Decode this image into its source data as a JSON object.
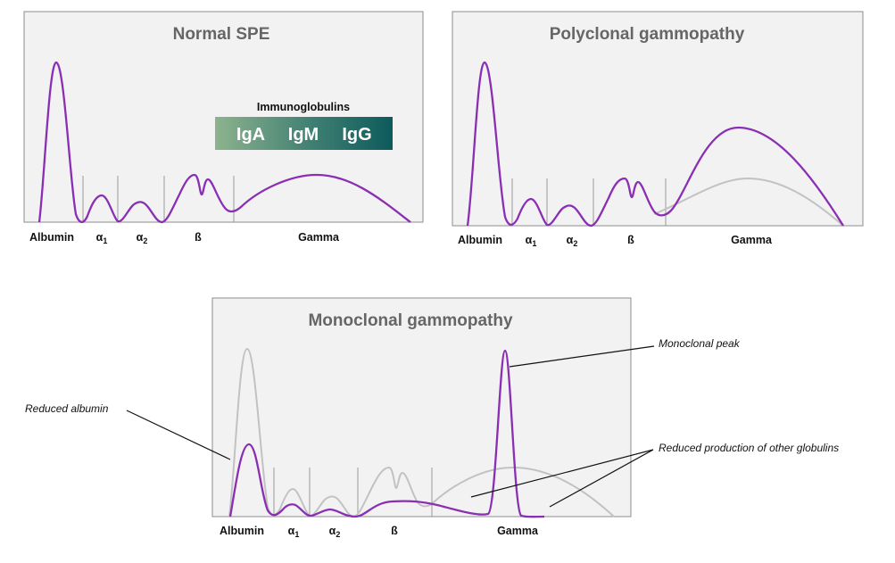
{
  "panels": {
    "normal": {
      "title": "Normal SPE",
      "fractions": {
        "albumin": "Albumin",
        "alpha1": "α",
        "alpha1_sub": "1",
        "alpha2": "α",
        "alpha2_sub": "2",
        "beta": "ß",
        "gamma": "Gamma"
      },
      "legend": {
        "heading": "Immunoglobulins",
        "iga": "IgA",
        "igm": "IgM",
        "igg": "IgG"
      }
    },
    "polyclonal": {
      "title": "Polyclonal gammopathy",
      "fractions": {
        "albumin": "Albumin",
        "alpha1": "α",
        "alpha1_sub": "1",
        "alpha2": "α",
        "alpha2_sub": "2",
        "beta": "ß",
        "gamma": "Gamma"
      }
    },
    "monoclonal": {
      "title": "Monoclonal gammopathy",
      "fractions": {
        "albumin": "Albumin",
        "alpha1": "α",
        "alpha1_sub": "1",
        "alpha2": "α",
        "alpha2_sub": "2",
        "beta": "ß",
        "gamma": "Gamma"
      },
      "annotations": {
        "reduced_albumin": "Reduced albumin",
        "monoclonal_peak": "Monoclonal peak",
        "reduced_globulins": "Reduced production of other globulins"
      }
    }
  },
  "colors": {
    "curve": "#8a2fb3",
    "reference_curve": "#c2c2c2",
    "panel_bg": "#f2f2f2",
    "panel_border": "#8c8c8c",
    "title": "#666666",
    "gradient_start": "#8db38e",
    "gradient_end": "#0d5a5c"
  }
}
